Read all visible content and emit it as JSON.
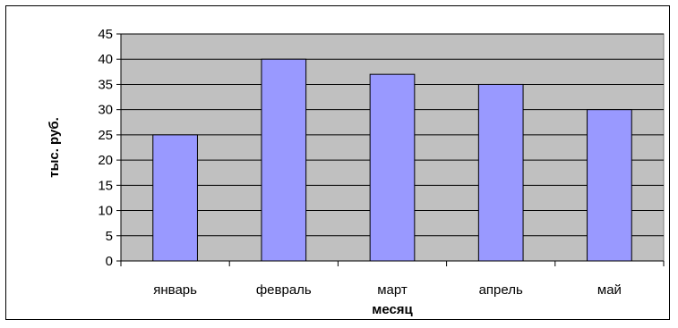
{
  "chart_data": {
    "type": "bar",
    "categories": [
      "январь",
      "февраль",
      "март",
      "апрель",
      "май"
    ],
    "series": [
      {
        "values": [
          25,
          40,
          37,
          35,
          30
        ]
      }
    ],
    "xlabel": "месяц",
    "ylabel": "тыс. руб.",
    "ylim": [
      0,
      45
    ],
    "ytick_step": 5,
    "grid": true,
    "legend": "none",
    "colors": {
      "bar_fill": "#9999ff",
      "plot_background": "#c0c0c0",
      "gridline": "#000000"
    }
  }
}
